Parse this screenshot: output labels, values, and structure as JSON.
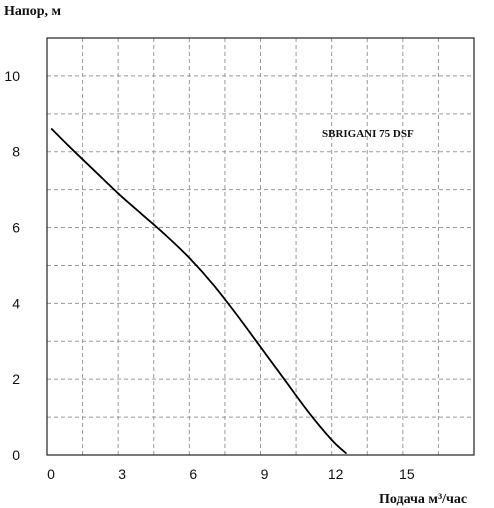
{
  "chart_data": {
    "type": "line",
    "ylabel": "Напор, м",
    "xlabel": "Подача м³/час",
    "annotation": "SBRIGANI 75 DSF",
    "xlim": [
      0,
      18
    ],
    "ylim": [
      0,
      11
    ],
    "x_ticks": [
      0,
      3,
      6,
      9,
      12,
      15
    ],
    "y_ticks": [
      0,
      2,
      4,
      6,
      8,
      10
    ],
    "x_grid": [
      1.5,
      3,
      4.5,
      6,
      7.5,
      9,
      10.5,
      12,
      13.5,
      15,
      16.5
    ],
    "y_grid": [
      1,
      2,
      3,
      4,
      5,
      6,
      7,
      8,
      9,
      10
    ],
    "grid": true,
    "series": [
      {
        "color": "#000000",
        "x": [
          0.2,
          1,
          2,
          3,
          4,
          5,
          6,
          7,
          8,
          9,
          10,
          11,
          12,
          12.6
        ],
        "y": [
          8.6,
          8.1,
          7.5,
          6.9,
          6.35,
          5.8,
          5.2,
          4.5,
          3.7,
          2.85,
          2.0,
          1.15,
          0.4,
          0.05
        ]
      }
    ]
  }
}
